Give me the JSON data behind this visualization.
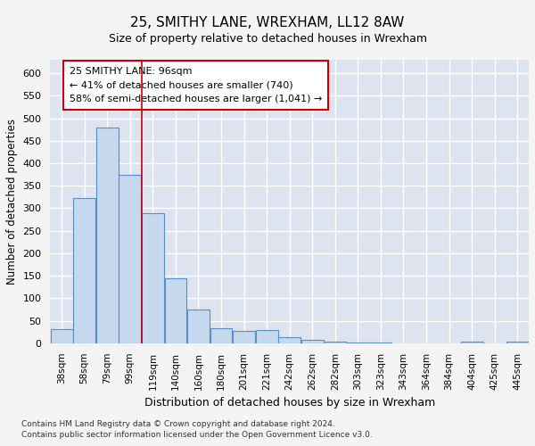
{
  "title": "25, SMITHY LANE, WREXHAM, LL12 8AW",
  "subtitle": "Size of property relative to detached houses in Wrexham",
  "xlabel": "Distribution of detached houses by size in Wrexham",
  "ylabel": "Number of detached properties",
  "categories": [
    "38sqm",
    "58sqm",
    "79sqm",
    "99sqm",
    "119sqm",
    "140sqm",
    "160sqm",
    "180sqm",
    "201sqm",
    "221sqm",
    "242sqm",
    "262sqm",
    "282sqm",
    "303sqm",
    "323sqm",
    "343sqm",
    "364sqm",
    "384sqm",
    "404sqm",
    "425sqm",
    "445sqm"
  ],
  "values": [
    32,
    323,
    480,
    375,
    290,
    144,
    75,
    33,
    28,
    29,
    14,
    7,
    3,
    1,
    1,
    0,
    0,
    0,
    4,
    0,
    4
  ],
  "bar_color": "#c5d8ee",
  "bar_edge_color": "#5b8dc8",
  "property_label": "25 SMITHY LANE: 96sqm",
  "annotation_line1": "← 41% of detached houses are smaller (740)",
  "annotation_line2": "58% of semi-detached houses are larger (1,041) →",
  "annotation_box_color": "#ffffff",
  "annotation_box_edge": "#cc0000",
  "line_color": "#cc0000",
  "ylim": [
    0,
    630
  ],
  "yticks": [
    0,
    50,
    100,
    150,
    200,
    250,
    300,
    350,
    400,
    450,
    500,
    550,
    600
  ],
  "background_color": "#dde3ef",
  "grid_color": "#ffffff",
  "fig_background": "#f4f4f4",
  "footer1": "Contains HM Land Registry data © Crown copyright and database right 2024.",
  "footer2": "Contains public sector information licensed under the Open Government Licence v3.0."
}
